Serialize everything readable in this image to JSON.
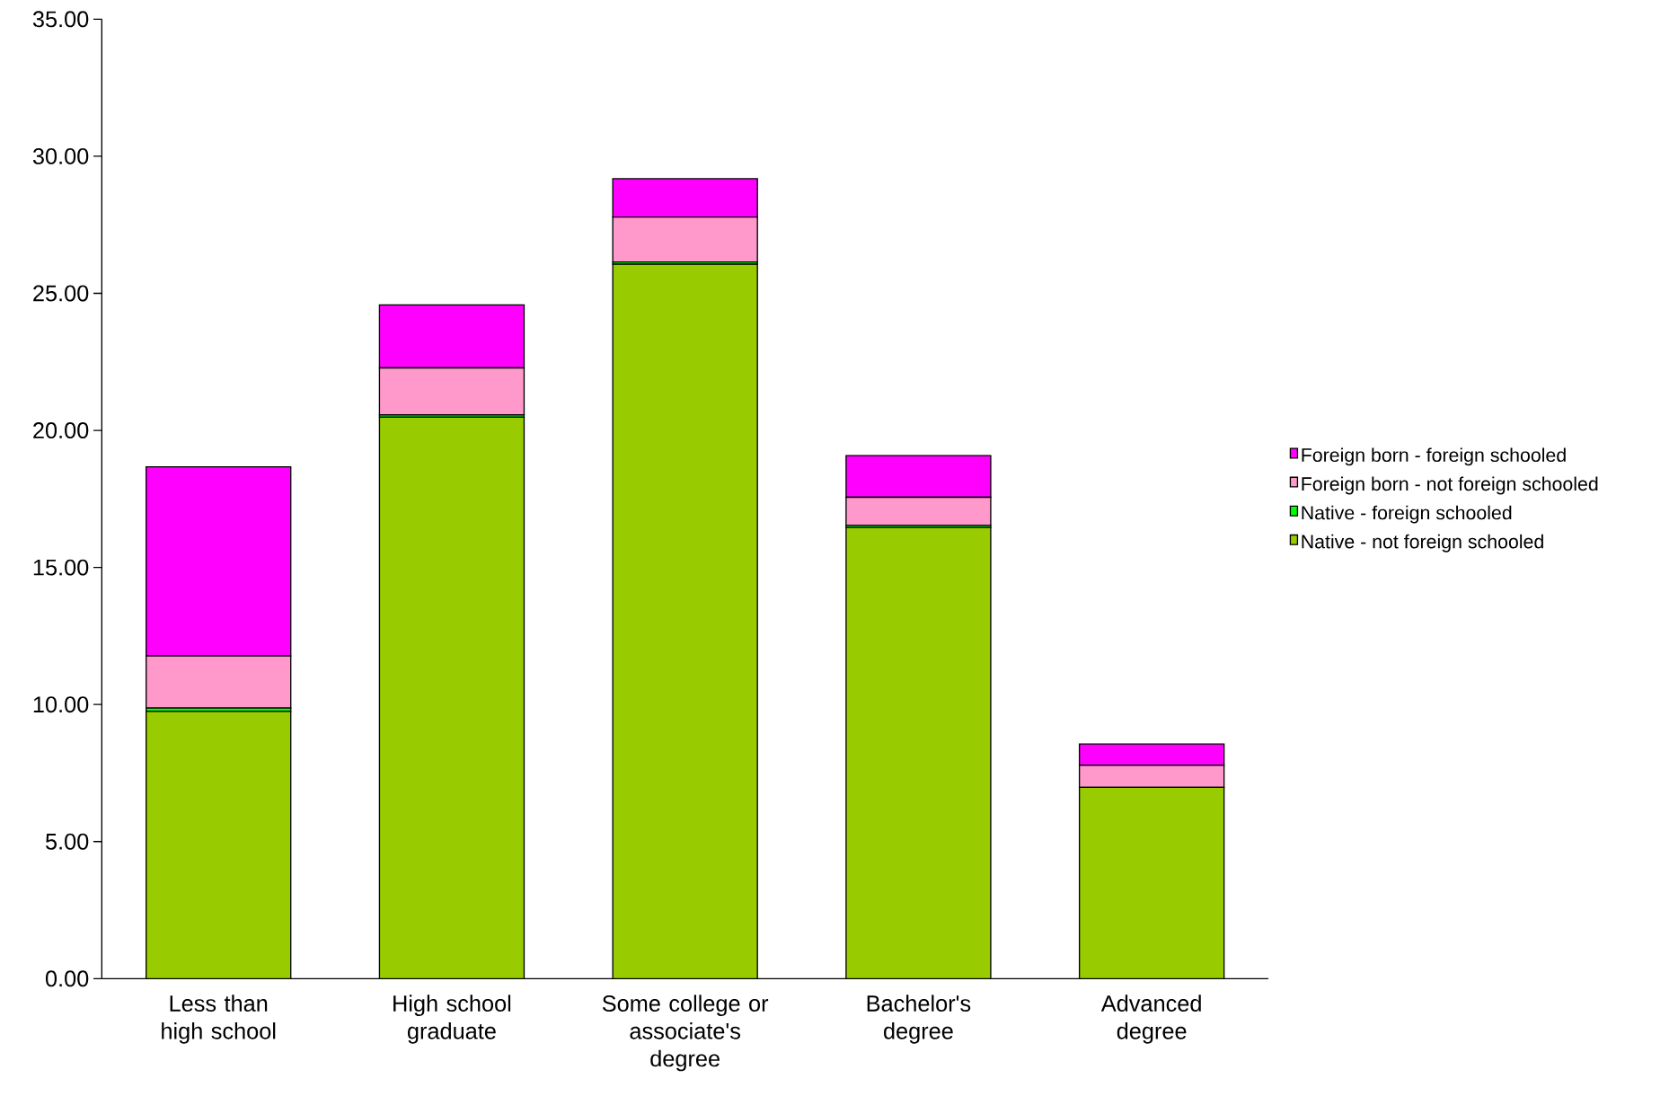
{
  "chart_data": {
    "type": "bar",
    "stacked": true,
    "categories": [
      "Less than high school",
      "High school graduate",
      "Some college or associate's degree",
      "Bachelor's degree",
      "Advanced degree"
    ],
    "series": [
      {
        "name": "Native - not foreign schooled",
        "color": "#99cc00",
        "values": [
          9.75,
          20.48,
          26.06,
          16.46,
          6.98
        ]
      },
      {
        "name": "Native - foreign schooled",
        "color": "#00ff00",
        "values": [
          0.12,
          0.08,
          0.08,
          0.08,
          null
        ]
      },
      {
        "name": "Foreign born - not foreign schooled",
        "color": "#ff99cc",
        "values": [
          1.9,
          1.72,
          1.64,
          1.02,
          0.8
        ]
      },
      {
        "name": "Foreign born - foreign schooled",
        "color": "#ff00ff",
        "values": [
          6.9,
          2.3,
          1.4,
          1.52,
          0.78
        ]
      }
    ],
    "ylim": [
      0,
      35
    ],
    "yticks": [
      {
        "value": 0,
        "label": "0.00"
      },
      {
        "value": 5,
        "label": "5.00"
      },
      {
        "value": 10,
        "label": "10.00"
      },
      {
        "value": 15,
        "label": "15.00"
      },
      {
        "value": 20,
        "label": "20.00"
      },
      {
        "value": 25,
        "label": "25.00"
      },
      {
        "value": 30,
        "label": "30.00"
      },
      {
        "value": 35,
        "label": "35.00"
      }
    ],
    "legend": "right",
    "grid": false
  }
}
